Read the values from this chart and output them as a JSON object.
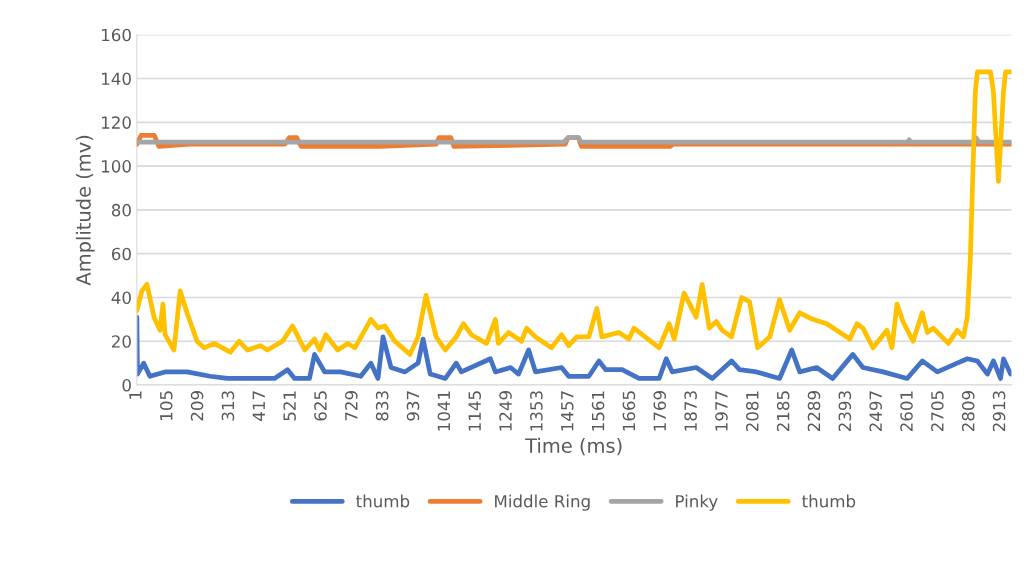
{
  "chart_data": {
    "type": "line",
    "xlabel": "Time (ms)",
    "ylabel": "Amplitude (mv)",
    "xlim": [
      1,
      2950
    ],
    "xticks": [
      1,
      105,
      209,
      313,
      417,
      521,
      625,
      729,
      833,
      937,
      1041,
      1145,
      1249,
      1353,
      1457,
      1561,
      1665,
      1769,
      1873,
      1977,
      2081,
      2185,
      2289,
      2393,
      2497,
      2601,
      2705,
      2809,
      2913
    ],
    "ylim": [
      0,
      160
    ],
    "yticks": [
      0,
      20,
      40,
      60,
      80,
      100,
      120,
      140,
      160
    ],
    "grid": "y",
    "legend": "bottom",
    "series": [
      {
        "name": "thumb",
        "color": "#4472c4",
        "x": [
          1,
          3,
          24,
          45,
          96,
          170,
          248,
          306,
          465,
          509,
          533,
          583,
          600,
          634,
          688,
          756,
          790,
          814,
          831,
          858,
          905,
          949,
          966,
          990,
          1041,
          1078,
          1095,
          1193,
          1210,
          1261,
          1288,
          1322,
          1345,
          1433,
          1457,
          1484,
          1525,
          1559,
          1582,
          1637,
          1694,
          1762,
          1786,
          1806,
          1887,
          1941,
          2006,
          2033,
          2090,
          2168,
          2209,
          2236,
          2293,
          2347,
          2415,
          2449,
          2517,
          2598,
          2649,
          2700,
          2767,
          2801,
          2835,
          2869,
          2889,
          2913,
          2923,
          2947
        ],
        "values": [
          31,
          5,
          10,
          4,
          6,
          6,
          4,
          3,
          3,
          7,
          3,
          3,
          14,
          6,
          6,
          4,
          10,
          3,
          22,
          8,
          6,
          10,
          21,
          5,
          3,
          10,
          6,
          12,
          6,
          8,
          5,
          16,
          6,
          8,
          4,
          4,
          4,
          11,
          7,
          7,
          3,
          3,
          12,
          6,
          8,
          3,
          11,
          7,
          6,
          3,
          16,
          6,
          8,
          3,
          14,
          8,
          6,
          3,
          11,
          6,
          10,
          12,
          11,
          5,
          11,
          3,
          12,
          5
        ]
      },
      {
        "name": "Middle Ring",
        "color": "#ed7d31",
        "x": [
          1,
          15,
          60,
          75,
          180,
          500,
          515,
          540,
          555,
          820,
          1010,
          1020,
          1060,
          1070,
          1445,
          1455,
          1490,
          1500,
          1800,
          1810,
          2950
        ],
        "values": [
          110,
          114,
          114,
          109,
          110,
          110,
          113,
          113,
          109,
          109,
          110,
          113,
          113,
          109,
          110,
          113,
          113,
          109,
          109,
          110,
          110
        ]
      },
      {
        "name": "Pinky",
        "color": "#a5a5a5",
        "x": [
          1,
          1440,
          1455,
          1490,
          1500,
          2600,
          2605,
          2610,
          2820,
          2830,
          2840,
          2950
        ],
        "values": [
          111,
          111,
          113,
          113,
          111,
          111,
          112,
          111,
          111,
          113,
          111,
          111
        ]
      },
      {
        "name": "thumb",
        "color": "#ffc000",
        "x": [
          1,
          18,
          35,
          59,
          79,
          89,
          96,
          126,
          147,
          170,
          204,
          228,
          262,
          316,
          346,
          374,
          418,
          441,
          492,
          526,
          567,
          600,
          617,
          638,
          678,
          712,
          736,
          790,
          814,
          837,
          871,
          922,
          949,
          976,
          1010,
          1041,
          1078,
          1102,
          1129,
          1180,
          1210,
          1220,
          1254,
          1298,
          1315,
          1345,
          1399,
          1433,
          1457,
          1484,
          1525,
          1552,
          1569,
          1626,
          1660,
          1677,
          1762,
          1796,
          1813,
          1846,
          1887,
          1907,
          1931,
          1955,
          1975,
          2006,
          2040,
          2067,
          2094,
          2135,
          2168,
          2202,
          2236,
          2280,
          2327,
          2405,
          2429,
          2449,
          2483,
          2530,
          2547,
          2564,
          2584,
          2618,
          2649,
          2666,
          2686,
          2737,
          2767,
          2788,
          2801,
          2811,
          2828,
          2835,
          2879,
          2889,
          2906,
          2923,
          2930,
          2947
        ],
        "values": [
          34,
          43,
          46,
          31,
          25,
          37,
          23,
          16,
          43,
          33,
          20,
          17,
          19,
          15,
          20,
          16,
          18,
          16,
          20,
          27,
          16,
          21,
          16,
          23,
          16,
          19,
          17,
          30,
          26,
          27,
          20,
          14,
          22,
          41,
          22,
          16,
          22,
          28,
          23,
          19,
          30,
          19,
          24,
          20,
          26,
          22,
          17,
          23,
          18,
          22,
          22,
          35,
          22,
          24,
          21,
          26,
          17,
          28,
          21,
          42,
          31,
          46,
          26,
          29,
          25,
          22,
          40,
          38,
          17,
          22,
          39,
          25,
          33,
          30,
          28,
          21,
          28,
          26,
          17,
          25,
          17,
          37,
          29,
          20,
          33,
          24,
          26,
          19,
          25,
          22,
          31,
          57,
          134,
          143,
          143,
          134,
          93,
          134,
          143,
          143
        ]
      }
    ]
  }
}
